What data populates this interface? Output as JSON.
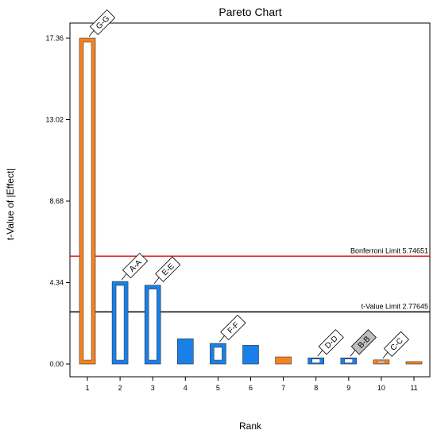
{
  "chart_data": {
    "type": "bar",
    "title": "Pareto Chart",
    "xlabel": "Rank",
    "ylabel": "t-Value of |Effect|",
    "categories": [
      "1",
      "2",
      "3",
      "4",
      "5",
      "6",
      "7",
      "8",
      "9",
      "10",
      "11"
    ],
    "values": [
      17.36,
      4.4,
      4.2,
      1.35,
      1.1,
      1.0,
      0.38,
      0.33,
      0.33,
      0.22,
      0.13
    ],
    "bar_labels": [
      "G-G",
      "A-A",
      "E-E",
      "",
      "F-F",
      "",
      "",
      "D-D",
      "B-B",
      "C-C",
      ""
    ],
    "bar_colors": [
      "#f58220",
      "#1a7fe6",
      "#1a7fe6",
      "#1a7fe6",
      "#1a7fe6",
      "#1a7fe6",
      "#f58220",
      "#1a7fe6",
      "#1a7fe6",
      "#f58220",
      "#f58220"
    ],
    "hollow": [
      true,
      true,
      true,
      false,
      true,
      false,
      false,
      true,
      true,
      true,
      false
    ],
    "label_fill": [
      "#ffffff",
      "#ffffff",
      "#ffffff",
      "",
      "#ffffff",
      "",
      "",
      "#ffffff",
      "#bfbfbf",
      "#ffffff",
      ""
    ],
    "yticks": [
      "0.00",
      "4.34",
      "8.68",
      "13.02",
      "17.36"
    ],
    "ylim": [
      0,
      17.8
    ],
    "reference_lines": [
      {
        "label": "Bonferroni Limit 5.74651",
        "value": 5.74651,
        "color": "#e31a1c"
      },
      {
        "label": "t-Value Limit 2.77645",
        "value": 2.77645,
        "color": "#000000"
      }
    ],
    "grid": false
  }
}
